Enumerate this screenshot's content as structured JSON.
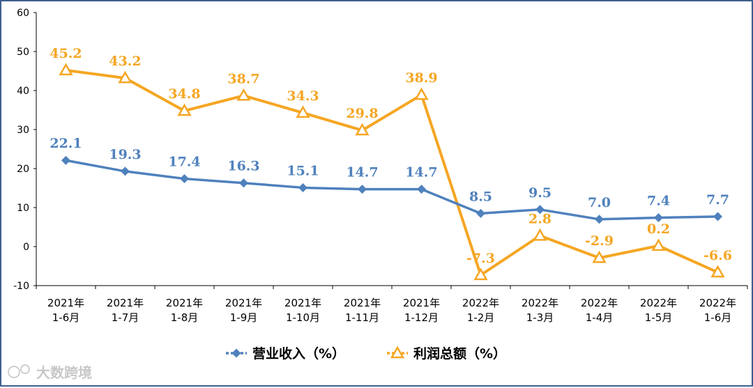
{
  "chart_data": {
    "type": "line",
    "categories": [
      [
        "2021年",
        "1-6月"
      ],
      [
        "2021年",
        "1-7月"
      ],
      [
        "2021年",
        "1-8月"
      ],
      [
        "2021年",
        "1-9月"
      ],
      [
        "2021年",
        "1-10月"
      ],
      [
        "2021年",
        "1-11月"
      ],
      [
        "2021年",
        "1-12月"
      ],
      [
        "2022年",
        "1-2月"
      ],
      [
        "2022年",
        "1-3月"
      ],
      [
        "2022年",
        "1-4月"
      ],
      [
        "2022年",
        "1-5月"
      ],
      [
        "2022年",
        "1-6月"
      ]
    ],
    "series": [
      {
        "name": "营业收入（%）",
        "color": "#4f81bd",
        "marker": "diamond",
        "values": [
          22.1,
          19.3,
          17.4,
          16.3,
          15.1,
          14.7,
          14.7,
          8.5,
          9.5,
          7.0,
          7.4,
          7.7
        ],
        "labels": [
          "22.1",
          "19.3",
          "17.4",
          "16.3",
          "15.1",
          "14.7",
          "14.7",
          "8.5",
          "9.5",
          "7.0",
          "7.4",
          "7.7"
        ]
      },
      {
        "name": "利润总额（%）",
        "color": "#f5a623",
        "marker": "triangle",
        "values": [
          45.2,
          43.2,
          34.8,
          38.7,
          34.3,
          29.8,
          38.9,
          -7.3,
          2.8,
          -2.9,
          0.2,
          -6.6
        ],
        "labels": [
          "45.2",
          "43.2",
          "34.8",
          "38.7",
          "34.3",
          "29.8",
          "38.9",
          "-7.3",
          "2.8",
          "-2.9",
          "0.2",
          "-6.6"
        ]
      }
    ],
    "ylim": [
      -10,
      60
    ],
    "yticks": [
      -10,
      0,
      10,
      20,
      30,
      40,
      50,
      60
    ],
    "grid": false,
    "legend_position": "bottom-center"
  },
  "watermark": "大数跨境"
}
